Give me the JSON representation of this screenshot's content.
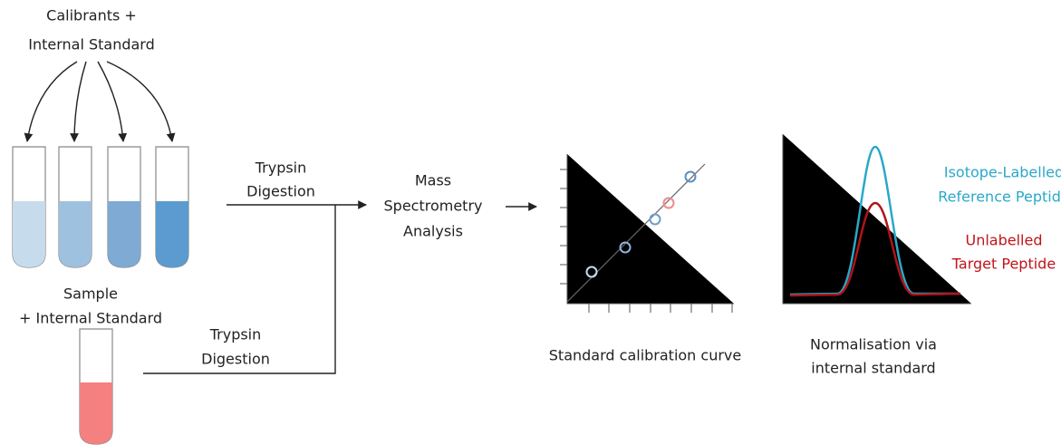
{
  "calibrants": {
    "lines": [
      "Calibrants +",
      "Internal Standard"
    ]
  },
  "sample": {
    "lines": [
      "Sample",
      "+ Internal Standard"
    ]
  },
  "digestion_top": {
    "lines": [
      "Trypsin",
      "Digestion"
    ]
  },
  "digestion_bottom": {
    "lines": [
      "Trypsin",
      "Digestion"
    ]
  },
  "mass_spec": {
    "lines": [
      "Mass",
      "Spectrometry",
      "Analysis"
    ]
  },
  "calibration_caption": {
    "lines": [
      "Standard calibration curve"
    ]
  },
  "normalisation_caption": {
    "lines": [
      "Normalisation via",
      "internal standard"
    ]
  },
  "labelled_peak": {
    "lines": [
      "Isotope-Labelled",
      "Reference Peptide"
    ]
  },
  "unlabelled_peak": {
    "lines": [
      "Unlabelled",
      "Target Peptide"
    ]
  }
}
